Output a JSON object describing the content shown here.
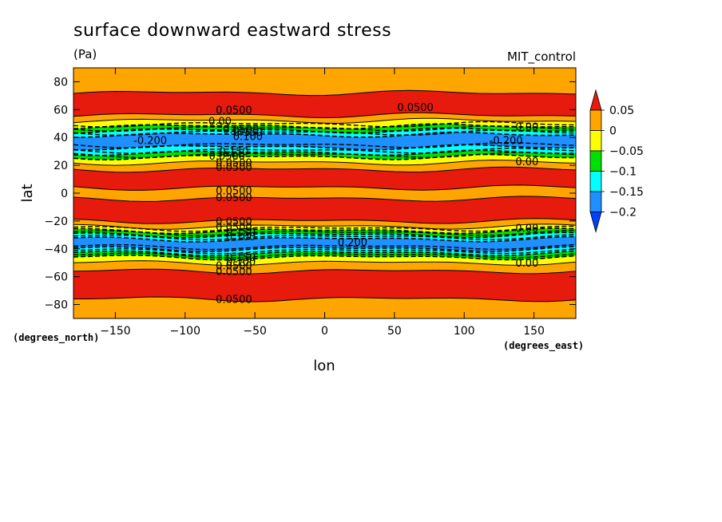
{
  "chart_data": {
    "type": "heatmap",
    "title": "surface downward eastward stress",
    "units": "(Pa)",
    "dataset": "MIT_control",
    "xlabel": "lon",
    "ylabel": "lat",
    "x_units": "(degrees_east)",
    "y_units": "(degrees_north)",
    "xlim": [
      -180,
      180
    ],
    "ylim": [
      -90,
      90
    ],
    "x_ticks": [
      -150,
      -100,
      -50,
      0,
      50,
      100,
      150
    ],
    "x_tick_labels": [
      "−150",
      "−100",
      "−50",
      "0",
      "50",
      "100",
      "150"
    ],
    "y_ticks": [
      80,
      60,
      40,
      20,
      0,
      -20,
      -40,
      -60,
      -80
    ],
    "y_tick_labels": [
      "80",
      "60",
      "40",
      "20",
      "0",
      "−20",
      "−40",
      "−60",
      "−80"
    ],
    "legend": {
      "placement": "right",
      "levels": [
        0.05,
        0,
        -0.05,
        -0.1,
        -0.15,
        -0.2
      ],
      "level_labels": [
        "0.05",
        "0",
        "−0.05",
        "−0.1",
        "−0.15",
        "−0.2"
      ],
      "colors": [
        "#e61a0d",
        "#ffa500",
        "#ffff00",
        "#00e000",
        "#00ffff",
        "#1e90ff",
        "#0040ff"
      ],
      "extend": "both"
    },
    "zonal_bands": [
      {
        "lat": [
          -90,
          -76
        ],
        "range": "0 to 0.05",
        "color": "#ffa500"
      },
      {
        "lat": [
          -76,
          -56
        ],
        "range": "> 0.05",
        "color": "#e61a0d"
      },
      {
        "lat": [
          -56,
          -50
        ],
        "range": "0 to 0.05",
        "color": "#ffa500"
      },
      {
        "lat": [
          -50,
          -46
        ],
        "range": "-0.05 to 0",
        "color": "#ffff00"
      },
      {
        "lat": [
          -46,
          -43
        ],
        "range": "-0.1 to -0.05",
        "color": "#00e000"
      },
      {
        "lat": [
          -43,
          -40
        ],
        "range": "-0.15 to -0.1",
        "color": "#00ffff"
      },
      {
        "lat": [
          -40,
          -33
        ],
        "range": "< -0.2",
        "color": "#1e90ff"
      },
      {
        "lat": [
          -33,
          -30
        ],
        "range": "-0.15 to -0.1",
        "color": "#00ffff"
      },
      {
        "lat": [
          -30,
          -27
        ],
        "range": "-0.1 to -0.05",
        "color": "#00e000"
      },
      {
        "lat": [
          -27,
          -24
        ],
        "range": "-0.05 to 0",
        "color": "#ffff00"
      },
      {
        "lat": [
          -24,
          -20
        ],
        "range": "0 to 0.05",
        "color": "#ffa500"
      },
      {
        "lat": [
          -20,
          -4
        ],
        "range": "> 0.05",
        "color": "#e61a0d"
      },
      {
        "lat": [
          -4,
          4
        ],
        "range": "0 to 0.05",
        "color": "#ffa500"
      },
      {
        "lat": [
          4,
          17
        ],
        "range": "> 0.05",
        "color": "#e61a0d"
      },
      {
        "lat": [
          17,
          22
        ],
        "range": "0 to 0.05",
        "color": "#ffa500"
      },
      {
        "lat": [
          22,
          26
        ],
        "range": "-0.05 to 0",
        "color": "#ffff00"
      },
      {
        "lat": [
          26,
          29
        ],
        "range": "-0.1 to -0.05",
        "color": "#00e000"
      },
      {
        "lat": [
          29,
          33
        ],
        "range": "-0.15 to -0.1",
        "color": "#00ffff"
      },
      {
        "lat": [
          33,
          42
        ],
        "range": "< -0.2",
        "color": "#1e90ff"
      },
      {
        "lat": [
          42,
          45
        ],
        "range": "-0.15 to -0.1",
        "color": "#00ffff"
      },
      {
        "lat": [
          45,
          48
        ],
        "range": "-0.1 to -0.05",
        "color": "#00e000"
      },
      {
        "lat": [
          48,
          52
        ],
        "range": "-0.05 to 0",
        "color": "#ffff00"
      },
      {
        "lat": [
          52,
          56
        ],
        "range": "0 to 0.05",
        "color": "#ffa500"
      },
      {
        "lat": [
          56,
          72
        ],
        "range": "> 0.05",
        "color": "#e61a0d"
      },
      {
        "lat": [
          72,
          90
        ],
        "range": "0 to 0.05",
        "color": "#ffa500"
      }
    ],
    "contour_labels": [
      {
        "text": "0.0500",
        "lon": -65,
        "lat": 60
      },
      {
        "text": "0.0500",
        "lon": 65,
        "lat": 62
      },
      {
        "text": "0.00",
        "lon": 145,
        "lat": 48
      },
      {
        "text": "0.00",
        "lon": -75,
        "lat": 52
      },
      {
        "text": "0.0500",
        "lon": -60,
        "lat": 46
      },
      {
        "text": "0.150",
        "lon": -55,
        "lat": 44
      },
      {
        "text": "0.100",
        "lon": -55,
        "lat": 41
      },
      {
        "text": "-0.200",
        "lon": -125,
        "lat": 38
      },
      {
        "text": "-0.200",
        "lon": 130,
        "lat": 38
      },
      {
        "text": "0.150",
        "lon": -65,
        "lat": 30
      },
      {
        "text": "0.0500",
        "lon": -70,
        "lat": 27
      },
      {
        "text": "0.0500",
        "lon": -65,
        "lat": 22
      },
      {
        "text": "0.0500",
        "lon": -65,
        "lat": 19
      },
      {
        "text": "0.00",
        "lon": 145,
        "lat": 23
      },
      {
        "text": "0.0500",
        "lon": -65,
        "lat": 2
      },
      {
        "text": "0.0500",
        "lon": -65,
        "lat": -3
      },
      {
        "text": "0.0500",
        "lon": -65,
        "lat": -20
      },
      {
        "text": "0.0500",
        "lon": -65,
        "lat": -24
      },
      {
        "text": "0.00",
        "lon": 145,
        "lat": -25
      },
      {
        "text": "0.150",
        "lon": -60,
        "lat": -28
      },
      {
        "text": "0.100",
        "lon": -60,
        "lat": -31
      },
      {
        "text": "0.200",
        "lon": 20,
        "lat": -35
      },
      {
        "text": "0.150",
        "lon": -60,
        "lat": -46
      },
      {
        "text": "0.100",
        "lon": -60,
        "lat": -49
      },
      {
        "text": "0.0500",
        "lon": -65,
        "lat": -52
      },
      {
        "text": "0.0500",
        "lon": -65,
        "lat": -56
      },
      {
        "text": "0.00",
        "lon": 145,
        "lat": -50
      },
      {
        "text": "0.0500",
        "lon": -65,
        "lat": -76
      }
    ]
  }
}
